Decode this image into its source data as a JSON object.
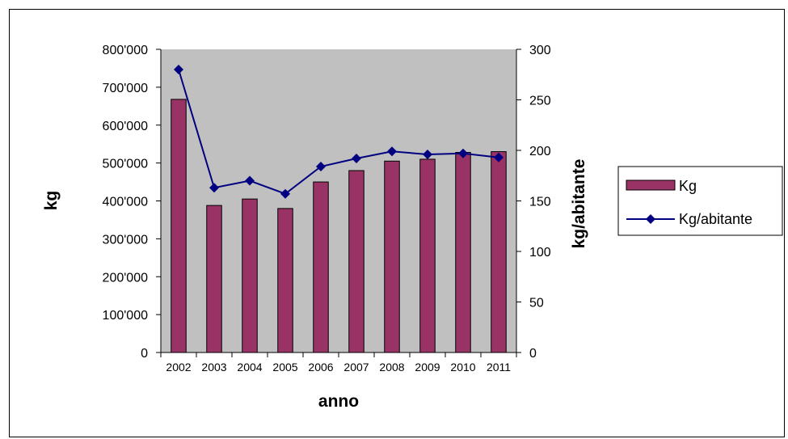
{
  "chart_data": {
    "type": "bar+line",
    "title": "",
    "categories": [
      "2002",
      "2003",
      "2004",
      "2005",
      "2006",
      "2007",
      "2008",
      "2009",
      "2010",
      "2011"
    ],
    "xlabel": "anno",
    "ylabel": "kg",
    "y2label": "kg/abitante",
    "ylim": [
      0,
      800000
    ],
    "y2lim": [
      0,
      300
    ],
    "yticks": [
      "0",
      "100'000",
      "200'000",
      "300'000",
      "400'000",
      "500'000",
      "600'000",
      "700'000",
      "800'000"
    ],
    "y2ticks": [
      "0",
      "50",
      "100",
      "150",
      "200",
      "250",
      "300"
    ],
    "plot_background": "#c0c0c0",
    "grid": false,
    "legend_position": "right",
    "series": [
      {
        "name": "Kg",
        "type": "bar",
        "axis": "left",
        "color": "#993366",
        "values": [
          668000,
          388000,
          405000,
          380000,
          450000,
          480000,
          505000,
          510000,
          528000,
          530000
        ]
      },
      {
        "name": "Kg/abitante",
        "type": "line",
        "axis": "right",
        "color": "#000080",
        "marker": "diamond",
        "values": [
          280,
          163,
          170,
          157,
          184,
          192,
          199,
          196,
          197,
          193
        ]
      }
    ]
  }
}
